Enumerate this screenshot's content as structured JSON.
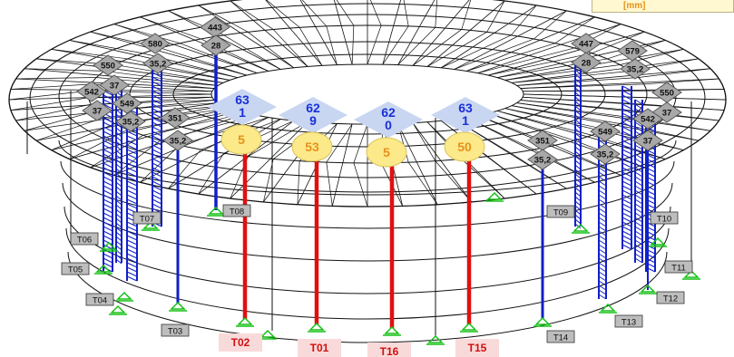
{
  "legend": {
    "unit": "[mm]"
  },
  "tower_labels": {
    "T01": "T01",
    "T02": "T02",
    "T03": "T03",
    "T04": "T04",
    "T05": "T05",
    "T06": "T06",
    "T07": "T07",
    "T08": "T08",
    "T09": "T09",
    "T10": "T10",
    "T11": "T11",
    "T12": "T12",
    "T13": "T13",
    "T14": "T14",
    "T15": "T15",
    "T16": "T16"
  },
  "highlighted_values": {
    "t02_top": "63\n1",
    "t02_bottom": "5",
    "t01_top": "62\n9",
    "t01_bottom": "53",
    "t16_top": "62\n0",
    "t16_bottom": "5",
    "t15_top": "63\n1",
    "t15_bottom": "50"
  },
  "grey_values": {
    "l1": "443",
    "l1b": "28",
    "l2": "580",
    "l2b": "35,2",
    "l3": "550",
    "l4": "37",
    "l5": "542",
    "l6": "37",
    "l7": "549",
    "l7b": "35,2",
    "l8": "351",
    "l8b": "35,2",
    "r1": "447",
    "r1b": "28",
    "r2": "579",
    "r2b": "35,2",
    "r3": "550",
    "r4": "37",
    "r5": "542",
    "r6": "37",
    "r7": "549",
    "r7b": "35,2",
    "r8": "351",
    "r8b": "35,2"
  },
  "colors": {
    "frame": "#111111",
    "column": "#1020c8",
    "highlight_column": "#e01010",
    "support": "#16c016",
    "diamond_blue": "#c8d6f2",
    "diamond_grey": "#a8a8a8",
    "ellipse_yellow": "#fbe98a",
    "label_pink": "#f9dada",
    "label_grey": "#bdbdbd"
  }
}
